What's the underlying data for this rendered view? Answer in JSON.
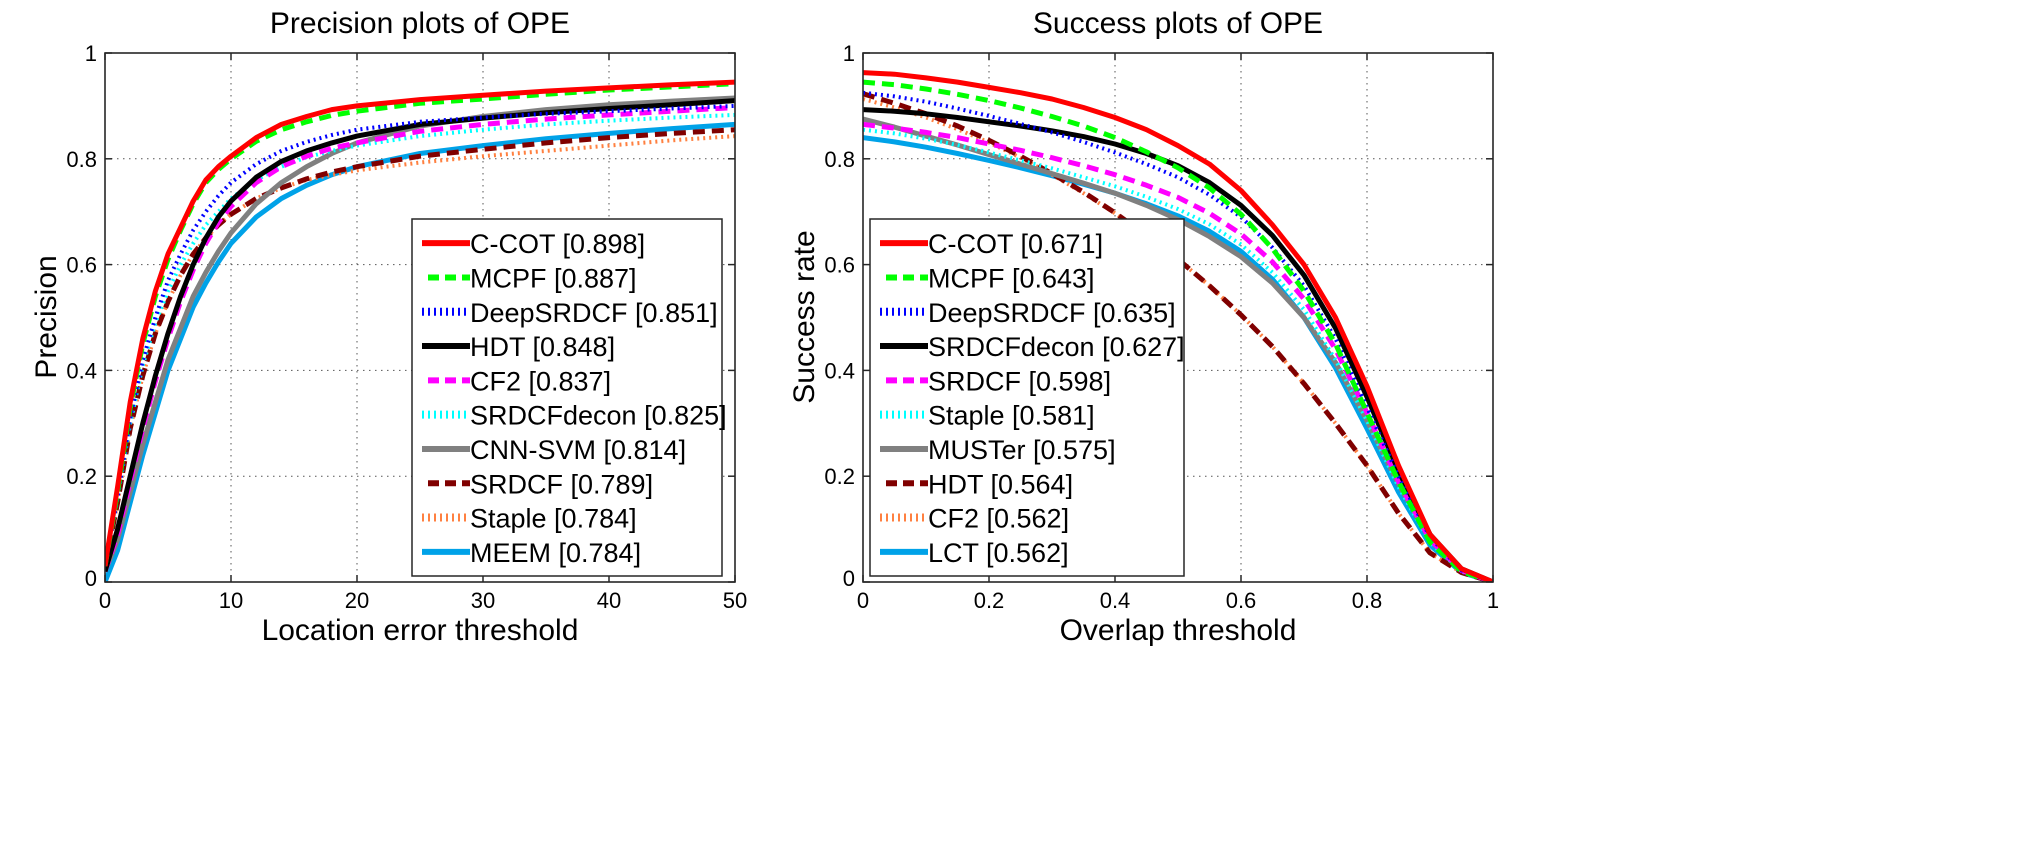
{
  "chart_data": [
    {
      "id": "precision",
      "type": "line",
      "title": "Precision plots of OPE",
      "xlabel": "Location error threshold",
      "ylabel": "Precision",
      "xlim": [
        0,
        50
      ],
      "ylim": [
        0,
        1
      ],
      "xticks": [
        0,
        10,
        20,
        30,
        40,
        50
      ],
      "xtick_labels": [
        "0",
        "10",
        "20",
        "30",
        "40",
        "50"
      ],
      "yticks": [
        0,
        0.2,
        0.4,
        0.6,
        0.8,
        1
      ],
      "ytick_labels": [
        "0",
        "0.2",
        "0.4",
        "0.6",
        "0.8",
        "1"
      ],
      "grid": true,
      "legend_position": "bottom-right",
      "x": [
        0,
        1,
        2,
        3,
        4,
        5,
        6,
        7,
        8,
        9,
        10,
        12,
        14,
        16,
        18,
        20,
        25,
        30,
        35,
        40,
        45,
        50
      ],
      "series": [
        {
          "name": "C-COT",
          "score": "0.898",
          "label": "C-COT [0.898]",
          "color": "#ff0000",
          "style": "solid",
          "values": [
            0.03,
            0.18,
            0.34,
            0.46,
            0.55,
            0.62,
            0.67,
            0.72,
            0.76,
            0.785,
            0.805,
            0.84,
            0.865,
            0.88,
            0.893,
            0.9,
            0.912,
            0.92,
            0.928,
            0.934,
            0.94,
            0.945
          ]
        },
        {
          "name": "MCPF",
          "score": "0.887",
          "label": "MCPF [0.887]",
          "color": "#00ff00",
          "style": "dashed",
          "values": [
            0.03,
            0.17,
            0.33,
            0.45,
            0.54,
            0.61,
            0.665,
            0.715,
            0.755,
            0.78,
            0.8,
            0.833,
            0.855,
            0.87,
            0.882,
            0.89,
            0.905,
            0.913,
            0.922,
            0.93,
            0.936,
            0.942
          ]
        },
        {
          "name": "DeepSRDCF",
          "score": "0.851",
          "label": "DeepSRDCF [0.851]",
          "color": "#0000ff",
          "style": "dotted",
          "values": [
            0.03,
            0.16,
            0.31,
            0.42,
            0.5,
            0.57,
            0.62,
            0.665,
            0.7,
            0.73,
            0.755,
            0.79,
            0.815,
            0.832,
            0.845,
            0.855,
            0.87,
            0.878,
            0.885,
            0.89,
            0.895,
            0.9
          ]
        },
        {
          "name": "HDT",
          "score": "0.848",
          "label": "HDT [0.848]",
          "color": "#000000",
          "style": "solid",
          "values": [
            0.02,
            0.1,
            0.2,
            0.3,
            0.39,
            0.47,
            0.54,
            0.6,
            0.65,
            0.69,
            0.72,
            0.765,
            0.795,
            0.815,
            0.83,
            0.843,
            0.865,
            0.877,
            0.887,
            0.895,
            0.902,
            0.91
          ]
        },
        {
          "name": "CF2",
          "score": "0.837",
          "label": "CF2 [0.837]",
          "color": "#ff00ff",
          "style": "dashed",
          "values": [
            0.02,
            0.09,
            0.19,
            0.29,
            0.38,
            0.46,
            0.53,
            0.59,
            0.64,
            0.68,
            0.71,
            0.755,
            0.785,
            0.805,
            0.82,
            0.83,
            0.852,
            0.865,
            0.875,
            0.883,
            0.89,
            0.897
          ]
        },
        {
          "name": "SRDCFdecon",
          "score": "0.825",
          "label": "SRDCFdecon [0.825]",
          "color": "#00ffff",
          "style": "dotted",
          "values": [
            0.03,
            0.16,
            0.3,
            0.41,
            0.49,
            0.55,
            0.6,
            0.64,
            0.675,
            0.7,
            0.725,
            0.76,
            0.785,
            0.803,
            0.815,
            0.825,
            0.843,
            0.855,
            0.865,
            0.872,
            0.878,
            0.883
          ]
        },
        {
          "name": "CNN-SVM",
          "score": "0.814",
          "label": "CNN-SVM [0.814]",
          "color": "#808080",
          "style": "solid",
          "values": [
            0.02,
            0.08,
            0.17,
            0.26,
            0.34,
            0.42,
            0.48,
            0.54,
            0.585,
            0.625,
            0.66,
            0.715,
            0.755,
            0.785,
            0.81,
            0.83,
            0.862,
            0.88,
            0.893,
            0.902,
            0.909,
            0.915
          ]
        },
        {
          "name": "SRDCF",
          "score": "0.789",
          "label": "SRDCF [0.789]",
          "color": "#800000",
          "style": "dashed",
          "values": [
            0.03,
            0.15,
            0.29,
            0.39,
            0.47,
            0.53,
            0.58,
            0.62,
            0.65,
            0.675,
            0.695,
            0.725,
            0.745,
            0.762,
            0.775,
            0.785,
            0.805,
            0.818,
            0.83,
            0.84,
            0.848,
            0.855
          ]
        },
        {
          "name": "Staple",
          "score": "0.784",
          "label": "Staple [0.784]",
          "color": "#ff8040",
          "style": "dotted",
          "values": [
            0.03,
            0.15,
            0.29,
            0.39,
            0.47,
            0.53,
            0.58,
            0.62,
            0.65,
            0.675,
            0.695,
            0.725,
            0.745,
            0.76,
            0.77,
            0.778,
            0.793,
            0.805,
            0.815,
            0.825,
            0.835,
            0.843
          ]
        },
        {
          "name": "MEEM",
          "score": "0.784",
          "label": "MEEM [0.784]",
          "color": "#00a2e8",
          "style": "solid",
          "values": [
            0.0,
            0.06,
            0.15,
            0.24,
            0.32,
            0.4,
            0.46,
            0.52,
            0.565,
            0.605,
            0.64,
            0.69,
            0.725,
            0.75,
            0.77,
            0.785,
            0.81,
            0.825,
            0.838,
            0.848,
            0.857,
            0.865
          ]
        }
      ]
    },
    {
      "id": "success",
      "type": "line",
      "title": "Success plots of OPE",
      "xlabel": "Overlap threshold",
      "ylabel": "Success rate",
      "xlim": [
        0,
        1
      ],
      "ylim": [
        0,
        1
      ],
      "xticks": [
        0,
        0.2,
        0.4,
        0.6,
        0.8,
        1
      ],
      "xtick_labels": [
        "0",
        "0.2",
        "0.4",
        "0.6",
        "0.8",
        "1"
      ],
      "yticks": [
        0,
        0.2,
        0.4,
        0.6,
        0.8,
        1
      ],
      "ytick_labels": [
        "0",
        "0.2",
        "0.4",
        "0.6",
        "0.8",
        "1"
      ],
      "grid": true,
      "legend_position": "bottom-left",
      "x": [
        0,
        0.05,
        0.1,
        0.15,
        0.2,
        0.25,
        0.3,
        0.35,
        0.4,
        0.45,
        0.5,
        0.55,
        0.6,
        0.65,
        0.7,
        0.75,
        0.8,
        0.85,
        0.9,
        0.95,
        1
      ],
      "series": [
        {
          "name": "C-COT",
          "score": "0.671",
          "label": "C-COT [0.671]",
          "color": "#ff0000",
          "style": "solid",
          "values": [
            0.963,
            0.96,
            0.953,
            0.945,
            0.935,
            0.925,
            0.913,
            0.897,
            0.878,
            0.855,
            0.825,
            0.79,
            0.74,
            0.675,
            0.6,
            0.5,
            0.37,
            0.22,
            0.09,
            0.025,
            0.0
          ]
        },
        {
          "name": "MCPF",
          "score": "0.643",
          "label": "MCPF [0.643]",
          "color": "#00ff00",
          "style": "dashed",
          "values": [
            0.945,
            0.94,
            0.932,
            0.922,
            0.91,
            0.896,
            0.88,
            0.862,
            0.84,
            0.813,
            0.783,
            0.745,
            0.695,
            0.63,
            0.55,
            0.45,
            0.32,
            0.19,
            0.075,
            0.02,
            0.0
          ]
        },
        {
          "name": "DeepSRDCF",
          "score": "0.635",
          "label": "DeepSRDCF [0.635]",
          "color": "#0000ff",
          "style": "dotted",
          "values": [
            0.925,
            0.918,
            0.908,
            0.895,
            0.881,
            0.866,
            0.85,
            0.832,
            0.812,
            0.79,
            0.765,
            0.732,
            0.69,
            0.632,
            0.56,
            0.46,
            0.33,
            0.2,
            0.085,
            0.022,
            0.0
          ]
        },
        {
          "name": "SRDCFdecon",
          "score": "0.627",
          "label": "SRDCFdecon [0.627]",
          "color": "#000000",
          "style": "solid",
          "values": [
            0.893,
            0.89,
            0.885,
            0.878,
            0.87,
            0.862,
            0.853,
            0.842,
            0.828,
            0.81,
            0.787,
            0.755,
            0.712,
            0.655,
            0.58,
            0.48,
            0.35,
            0.21,
            0.09,
            0.025,
            0.0
          ]
        },
        {
          "name": "SRDCF",
          "score": "0.598",
          "label": "SRDCF [0.598]",
          "color": "#ff00ff",
          "style": "dashed",
          "values": [
            0.865,
            0.858,
            0.85,
            0.84,
            0.828,
            0.816,
            0.802,
            0.787,
            0.77,
            0.75,
            0.727,
            0.697,
            0.658,
            0.605,
            0.535,
            0.44,
            0.32,
            0.19,
            0.08,
            0.022,
            0.0
          ]
        },
        {
          "name": "Staple",
          "score": "0.581",
          "label": "Staple [0.581]",
          "color": "#00ffff",
          "style": "dotted",
          "values": [
            0.855,
            0.848,
            0.838,
            0.826,
            0.812,
            0.797,
            0.782,
            0.765,
            0.748,
            0.728,
            0.705,
            0.676,
            0.638,
            0.585,
            0.515,
            0.42,
            0.305,
            0.18,
            0.075,
            0.02,
            0.0
          ]
        },
        {
          "name": "MUSTer",
          "score": "0.575",
          "label": "MUSTer [0.575]",
          "color": "#808080",
          "style": "solid",
          "values": [
            0.875,
            0.86,
            0.843,
            0.826,
            0.808,
            0.79,
            0.772,
            0.754,
            0.735,
            0.712,
            0.685,
            0.653,
            0.615,
            0.565,
            0.5,
            0.415,
            0.305,
            0.185,
            0.08,
            0.022,
            0.0
          ]
        },
        {
          "name": "HDT",
          "score": "0.564",
          "label": "HDT [0.564]",
          "color": "#800000",
          "style": "dashed",
          "values": [
            0.923,
            0.905,
            0.885,
            0.862,
            0.835,
            0.805,
            0.772,
            0.737,
            0.698,
            0.655,
            0.61,
            0.56,
            0.505,
            0.445,
            0.375,
            0.3,
            0.22,
            0.13,
            0.055,
            0.018,
            0.0
          ]
        },
        {
          "name": "CF2",
          "score": "0.562",
          "label": "CF2 [0.562]",
          "color": "#ff8040",
          "style": "dotted",
          "values": [
            0.913,
            0.897,
            0.878,
            0.856,
            0.831,
            0.802,
            0.77,
            0.735,
            0.697,
            0.655,
            0.61,
            0.56,
            0.505,
            0.445,
            0.375,
            0.3,
            0.22,
            0.13,
            0.055,
            0.018,
            0.0
          ]
        },
        {
          "name": "LCT",
          "score": "0.562",
          "label": "LCT [0.562]",
          "color": "#00a2e8",
          "style": "solid",
          "values": [
            0.84,
            0.832,
            0.822,
            0.81,
            0.797,
            0.783,
            0.768,
            0.752,
            0.735,
            0.715,
            0.692,
            0.663,
            0.625,
            0.572,
            0.5,
            0.405,
            0.29,
            0.17,
            0.07,
            0.018,
            0.0
          ]
        }
      ]
    }
  ]
}
